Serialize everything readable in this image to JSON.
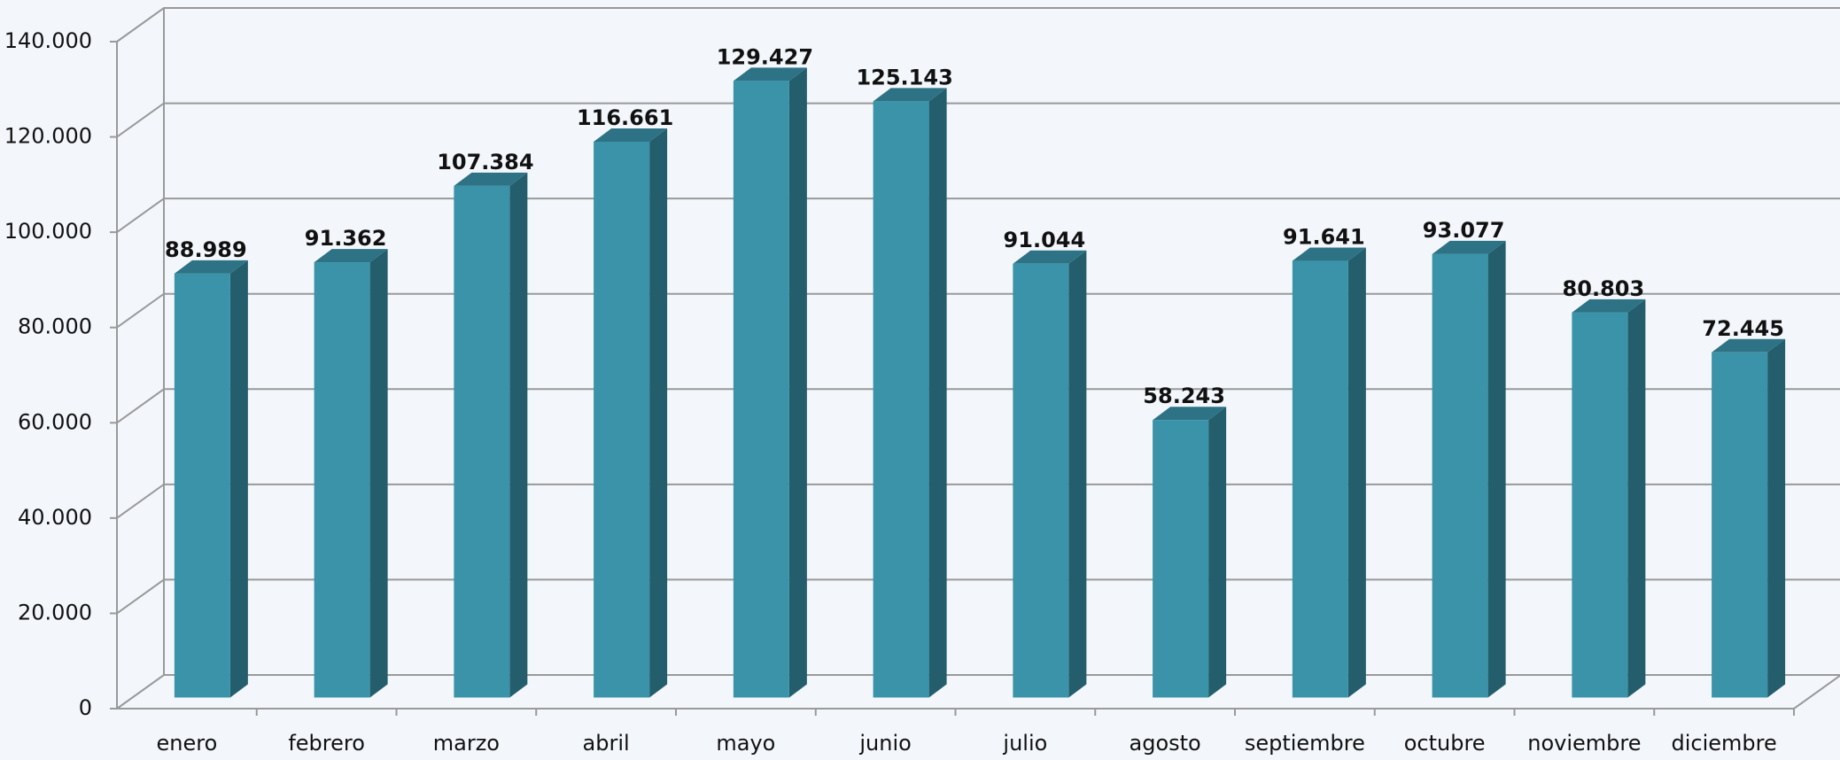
{
  "chart_data": {
    "type": "bar3d",
    "categories": [
      "enero",
      "febrero",
      "marzo",
      "abril",
      "mayo",
      "junio",
      "julio",
      "agosto",
      "septiembre",
      "octubre",
      "noviembre",
      "diciembre"
    ],
    "values": [
      88989,
      91362,
      107384,
      116661,
      129427,
      125143,
      91044,
      58243,
      91641,
      93077,
      80803,
      72445
    ],
    "value_labels": [
      "88.989",
      "91.362",
      "107.384",
      "116.661",
      "129.427",
      "125.143",
      "91.044",
      "58.243",
      "91.641",
      "93.077",
      "80.803",
      "72.445"
    ],
    "color": "#3a93a8",
    "ylim": [
      0,
      140000
    ],
    "yticks": [
      0,
      {
        "value": 20000,
        "label": "20.000"
      },
      {
        "value": 40000,
        "label": "40.000"
      },
      {
        "value": 60000,
        "label": "60.000"
      },
      {
        "value": 80000,
        "label": "80.000"
      },
      {
        "value": 100000,
        "label": "100.000"
      },
      {
        "value": 120000,
        "label": "120.000"
      },
      {
        "value": 140000,
        "label": "140.000"
      }
    ],
    "grid": true
  }
}
